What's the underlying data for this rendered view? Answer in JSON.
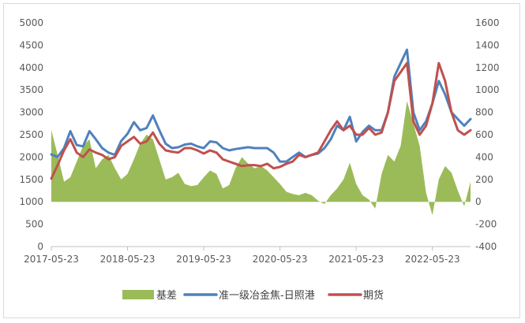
{
  "chart_data": {
    "type": "line",
    "title": "",
    "xlabel": "",
    "ylabel": "",
    "ylim_left": [
      0,
      5000
    ],
    "ylim_right": [
      -400,
      1600
    ],
    "yticks_left": [
      "0",
      "500",
      "1000",
      "1500",
      "2000",
      "2500",
      "3000",
      "3500",
      "4000",
      "4500",
      "5000"
    ],
    "yticks_right": [
      "-400",
      "-200",
      "0",
      "200",
      "400",
      "600",
      "800",
      "1000",
      "1200",
      "1400",
      "1600"
    ],
    "xticks": [
      "2017-05-23",
      "2018-05-23",
      "2019-05-23",
      "2020-05-23",
      "2021-05-23",
      "2022-05-23"
    ],
    "legend_position": "bottom",
    "grid": false,
    "x": [
      "2017-05",
      "2017-06",
      "2017-07",
      "2017-08",
      "2017-09",
      "2017-10",
      "2017-11",
      "2017-12",
      "2018-01",
      "2018-02",
      "2018-03",
      "2018-04",
      "2018-05",
      "2018-06",
      "2018-07",
      "2018-08",
      "2018-09",
      "2018-10",
      "2018-11",
      "2018-12",
      "2019-01",
      "2019-02",
      "2019-03",
      "2019-04",
      "2019-05",
      "2019-06",
      "2019-07",
      "2019-08",
      "2019-09",
      "2019-10",
      "2019-11",
      "2019-12",
      "2020-01",
      "2020-02",
      "2020-03",
      "2020-04",
      "2020-05",
      "2020-06",
      "2020-07",
      "2020-08",
      "2020-09",
      "2020-10",
      "2020-11",
      "2020-12",
      "2021-01",
      "2021-02",
      "2021-03",
      "2021-04",
      "2021-05",
      "2021-06",
      "2021-07",
      "2021-08",
      "2021-09",
      "2021-10",
      "2021-11",
      "2021-12",
      "2022-01",
      "2022-02",
      "2022-03",
      "2022-04",
      "2022-05",
      "2022-06",
      "2022-07",
      "2022-08",
      "2022-09",
      "2022-10",
      "2022-11"
    ],
    "series": [
      {
        "name": "基差",
        "axis": "right",
        "kind": "area",
        "color": "#9bbb59",
        "values": [
          640,
          420,
          180,
          220,
          360,
          500,
          560,
          300,
          380,
          420,
          300,
          200,
          250,
          380,
          520,
          600,
          560,
          380,
          200,
          220,
          260,
          160,
          140,
          150,
          220,
          280,
          250,
          120,
          150,
          300,
          400,
          340,
          300,
          320,
          280,
          220,
          160,
          90,
          70,
          60,
          80,
          60,
          10,
          -20,
          60,
          120,
          200,
          350,
          160,
          60,
          20,
          -60,
          250,
          420,
          360,
          500,
          900,
          700,
          500,
          80,
          -120,
          200,
          320,
          260,
          100,
          -40,
          180
        ]
      },
      {
        "name": "准一级冶金焦-日照港",
        "axis": "left",
        "kind": "line",
        "color": "#4f81bd",
        "values": [
          2060,
          2000,
          2200,
          2580,
          2270,
          2240,
          2580,
          2400,
          2200,
          2100,
          2050,
          2360,
          2520,
          2780,
          2600,
          2650,
          2930,
          2600,
          2300,
          2200,
          2220,
          2280,
          2300,
          2240,
          2200,
          2350,
          2330,
          2200,
          2150,
          2180,
          2200,
          2220,
          2200,
          2200,
          2200,
          2100,
          1900,
          1900,
          2000,
          2100,
          2000,
          2050,
          2080,
          2200,
          2400,
          2700,
          2600,
          2900,
          2350,
          2560,
          2700,
          2600,
          2600,
          3000,
          3800,
          4100,
          4400,
          3000,
          2600,
          2800,
          3200,
          3700,
          3400,
          3000,
          2850,
          2700,
          2850
        ]
      },
      {
        "name": "期货",
        "axis": "left",
        "kind": "line",
        "color": "#c0504d",
        "values": [
          1520,
          1820,
          2150,
          2400,
          2100,
          2000,
          2170,
          2100,
          2050,
          1950,
          2000,
          2250,
          2350,
          2450,
          2300,
          2350,
          2550,
          2300,
          2150,
          2120,
          2100,
          2200,
          2200,
          2150,
          2080,
          2150,
          2100,
          1950,
          1900,
          1850,
          1800,
          1820,
          1820,
          1800,
          1850,
          1750,
          1780,
          1850,
          1900,
          2050,
          2000,
          2050,
          2100,
          2350,
          2600,
          2800,
          2600,
          2700,
          2500,
          2500,
          2650,
          2500,
          2550,
          3000,
          3700,
          3900,
          4100,
          2800,
          2500,
          2700,
          3200,
          4100,
          3700,
          3000,
          2600,
          2500,
          2600
        ]
      }
    ]
  }
}
